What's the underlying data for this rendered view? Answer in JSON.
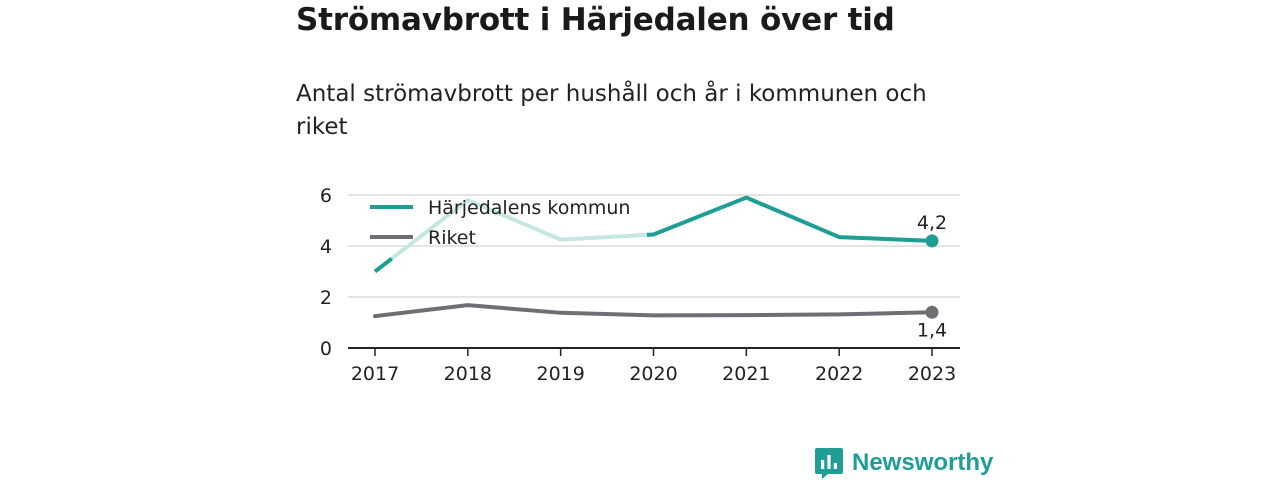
{
  "title": "Strömavbrott i Härjedalen över tid",
  "subtitle": "Antal strömavbrott per hushåll och år i kommunen och riket",
  "brand": {
    "name": "Newsworthy",
    "logo_icon": "newsworthy-chart-bubble-icon"
  },
  "colors": {
    "kommun": "#1f9e96",
    "kommun_faded": "#c4e7e4",
    "riket": "#6f6e75"
  },
  "chart_data": {
    "type": "line",
    "title": "Strömavbrott i Härjedalen över tid",
    "subtitle": "Antal strömavbrott per hushåll och år i kommunen och riket",
    "xlabel": "",
    "ylabel": "",
    "x": [
      "2017",
      "2018",
      "2019",
      "2020",
      "2021",
      "2022",
      "2023"
    ],
    "ylim": [
      0,
      6
    ],
    "yticks": [
      "0",
      "2",
      "4",
      "6"
    ],
    "grid": true,
    "legend_position": "top-left",
    "series": [
      {
        "name": "Härjedalens kommun",
        "values": [
          3.0,
          5.8,
          4.25,
          4.45,
          5.9,
          4.35,
          4.2
        ],
        "end_label": "4,2"
      },
      {
        "name": "Riket",
        "values": [
          1.25,
          1.68,
          1.38,
          1.28,
          1.29,
          1.32,
          1.4
        ],
        "end_label": "1,4"
      }
    ]
  }
}
